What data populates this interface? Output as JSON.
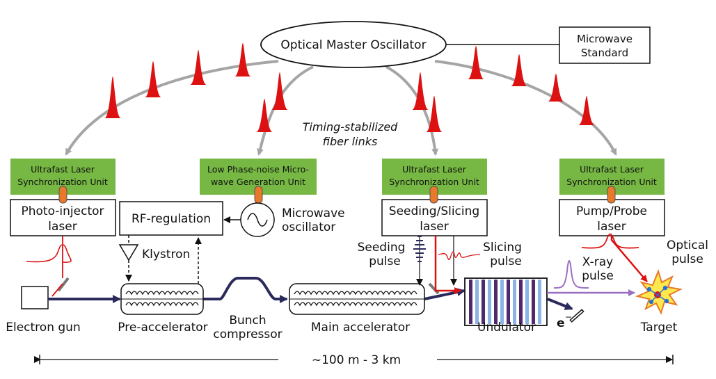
{
  "oscillator": {
    "label": "Optical Master Oscillator"
  },
  "microwave_standard": {
    "line1": "Microwave",
    "line2": "Standard"
  },
  "fiber_links": {
    "line1": "Timing-stabilized",
    "line2": "fiber links"
  },
  "sync_units": [
    {
      "line1": "Ultrafast Laser",
      "line2": "Synchronization Unit"
    },
    {
      "line1": "Low Phase-noise Micro-",
      "line2": "wave Generation Unit"
    },
    {
      "line1": "Ultrafast Laser",
      "line2": "Synchronization Unit"
    },
    {
      "line1": "Ultrafast Laser",
      "line2": "Synchronization Unit"
    }
  ],
  "boxes": {
    "photo_injector": {
      "line1": "Photo-injector",
      "line2": "laser"
    },
    "rf_regulation": {
      "label": "RF-regulation"
    },
    "seeding_slicing": {
      "line1": "Seeding/Slicing",
      "line2": "laser"
    },
    "pump_probe": {
      "line1": "Pump/Probe",
      "line2": "laser"
    }
  },
  "microwave_osc": {
    "line1": "Microwave",
    "line2": "oscillator"
  },
  "klystron": {
    "label": "Klystron"
  },
  "pulses": {
    "seeding": {
      "line1": "Seeding",
      "line2": "pulse"
    },
    "slicing": {
      "line1": "Slicing",
      "line2": "pulse"
    },
    "xray": {
      "line1": "X-ray",
      "line2": "pulse"
    },
    "optical": {
      "line1": "Optical",
      "line2": "pulse"
    }
  },
  "components": {
    "electron_gun": "Electron gun",
    "pre_accelerator": "Pre-accelerator",
    "bunch_compressor_1": "Bunch",
    "bunch_compressor_2": "compressor",
    "main_accelerator": "Main accelerator",
    "undulator": "Undulator",
    "electron_label": "e",
    "electron_sup": "−",
    "target": "Target"
  },
  "scale": {
    "label": "~100 m - 3 km"
  },
  "colors": {
    "sync_green": "#76b843",
    "connector_orange": "#e8782a",
    "pulse_red": "#dd1111",
    "beam_navy": "#2b2a5c",
    "link_gray": "#a5a5a5",
    "xray_purple": "#9b6fc0",
    "undulator_blue": "#8ab4e6",
    "undulator_purple": "#4e2a6b"
  }
}
